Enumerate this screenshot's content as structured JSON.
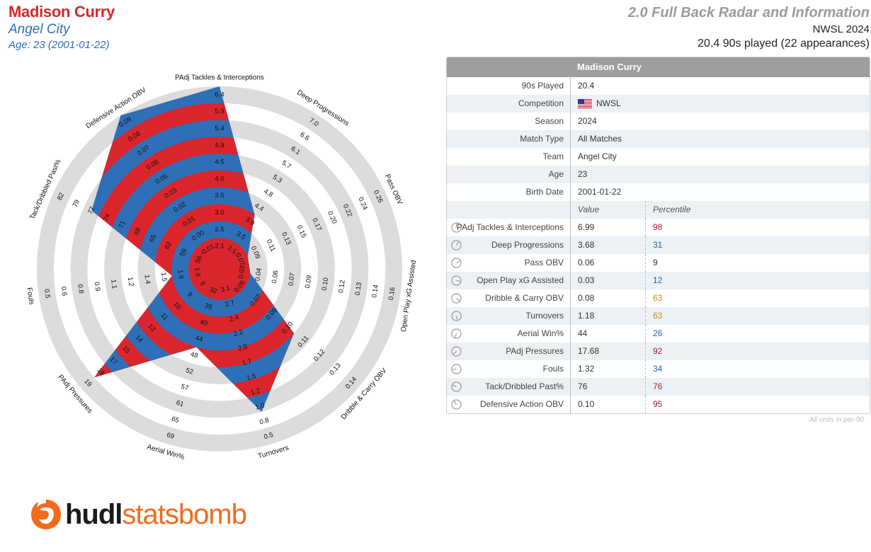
{
  "header": {
    "player_name": "Madison Curry",
    "team": "Angel City",
    "age_line": "Age: 23 (2001-01-22)",
    "report_title": "2.0 Full Back Radar and Information",
    "league_season": "NWSL 2024",
    "played_line": "20.4 90s played (22 appearances)"
  },
  "colors": {
    "red": "#d9252b",
    "blue": "#2f6fb7",
    "ring_grey": "#dcdcdc"
  },
  "chart_data": {
    "type": "radar",
    "title": "",
    "rings": 10,
    "axes": [
      {
        "name": "PAdj Tackles & Interceptions",
        "ticks": [
          "2.1",
          "2.5",
          "3.0",
          "3.5",
          "4.0",
          "4.5",
          "4.9",
          "5.4",
          "5.9",
          "6.4"
        ],
        "value": 6.99,
        "fraction": 1.0
      },
      {
        "name": "Deep Progressions",
        "ticks": [
          "3.1",
          "3.5",
          "3.9",
          "4.4",
          "4.8",
          "5.3",
          "5.7",
          "6.1",
          "6.6",
          "7.0"
        ],
        "value": 3.68,
        "fraction": 0.3
      },
      {
        "name": "Pass OBV",
        "ticks": [
          "0.07",
          "0.09",
          "0.11",
          "0.13",
          "0.15",
          "0.17",
          "0.20",
          "0.22",
          "0.24",
          "0.26"
        ],
        "value": 0.06,
        "fraction": 0.1
      },
      {
        "name": "Open Play xG Assisted",
        "ticks": [
          "0.03",
          "0.04",
          "0.06",
          "0.07",
          "0.09",
          "0.10",
          "0.12",
          "0.13",
          "0.14",
          "0.16"
        ],
        "value": 0.03,
        "fraction": 0.1
      },
      {
        "name": "Dribble & Carry OBV",
        "ticks": [
          "0.05",
          "0.07",
          "0.09",
          "0.10",
          "0.11",
          "0.12",
          "0.13",
          "0.14"
        ],
        "value": 0.08,
        "fraction": 0.5
      },
      {
        "name": "Turnovers",
        "ticks": [
          "3.1",
          "2.7",
          "2.4",
          "2.2",
          "2.0",
          "1.7",
          "1.5",
          "1.2",
          "1.0",
          "0.8",
          "0.5"
        ],
        "value": 1.18,
        "fraction": 0.8
      },
      {
        "name": "Aerial Win%",
        "ticks": [
          "32",
          "36",
          "40",
          "44",
          "48",
          "52",
          "57",
          "61",
          "65",
          "69"
        ],
        "value": 44,
        "fraction": 0.4
      },
      {
        "name": "PAdj Pressures",
        "ticks": [
          "8",
          "9",
          "10",
          "11",
          "13",
          "14",
          "15",
          "17",
          "18",
          "19"
        ],
        "value": 17.68,
        "fraction": 0.9
      },
      {
        "name": "Fouls",
        "ticks": [
          "1.8",
          "1.6",
          "1.5",
          "1.4",
          "1.2",
          "1.1",
          "0.9",
          "0.8",
          "0.6",
          "0.5"
        ],
        "value": 1.32,
        "fraction": 0.2
      },
      {
        "name": "Tack/Dribbled Past%",
        "ticks": [
          "56",
          "59",
          "62",
          "65",
          "68",
          "71",
          "74",
          "77",
          "79",
          "82"
        ],
        "value": 76,
        "fraction": 0.75
      },
      {
        "name": "Defensive Action OBV",
        "ticks": [
          "-0.01",
          "0.00",
          "0.01",
          "0.02",
          "0.03",
          "0.05",
          "0.06",
          "0.07",
          "0.08",
          "0.09"
        ],
        "value": 0.1,
        "fraction": 1.0
      }
    ]
  },
  "table": {
    "header": "Madison Curry",
    "info_rows": [
      {
        "label": "90s Played",
        "value": "20.4"
      },
      {
        "label": "Competition",
        "value": "NWSL",
        "flag": "us"
      },
      {
        "label": "Season",
        "value": "2024"
      },
      {
        "label": "Match Type",
        "value": "All Matches"
      },
      {
        "label": "Team",
        "value": "Angel City"
      },
      {
        "label": "Age",
        "value": "23"
      },
      {
        "label": "Birth Date",
        "value": "2001-01-22"
      }
    ],
    "col_value": "Value",
    "col_percentile": "Percentile",
    "metric_rows": [
      {
        "label": "PAdj Tackles & Interceptions",
        "value": "6.99",
        "percentile": "98",
        "pct_color": "red"
      },
      {
        "label": "Deep Progressions",
        "value": "3.68",
        "percentile": "31",
        "pct_color": "blue"
      },
      {
        "label": "Pass OBV",
        "value": "0.06",
        "percentile": "9",
        "pct_color": "dark"
      },
      {
        "label": "Open Play xG Assisted",
        "value": "0.03",
        "percentile": "12",
        "pct_color": "blue"
      },
      {
        "label": "Dribble & Carry OBV",
        "value": "0.08",
        "percentile": "63",
        "pct_color": "orange"
      },
      {
        "label": "Turnovers",
        "value": "1.18",
        "percentile": "63",
        "pct_color": "orange"
      },
      {
        "label": "Aerial Win%",
        "value": "44",
        "percentile": "26",
        "pct_color": "blue"
      },
      {
        "label": "PAdj Pressures",
        "value": "17.68",
        "percentile": "92",
        "pct_color": "red"
      },
      {
        "label": "Fouls",
        "value": "1.32",
        "percentile": "34",
        "pct_color": "blue"
      },
      {
        "label": "Tack/Dribbled Past%",
        "value": "76",
        "percentile": "76",
        "pct_color": "red"
      },
      {
        "label": "Defensive Action OBV",
        "value": "0.10",
        "percentile": "95",
        "pct_color": "red"
      }
    ],
    "footnote": "All units in per-90"
  },
  "logo": {
    "part1": "hudl",
    "part2": "statsbomb"
  }
}
